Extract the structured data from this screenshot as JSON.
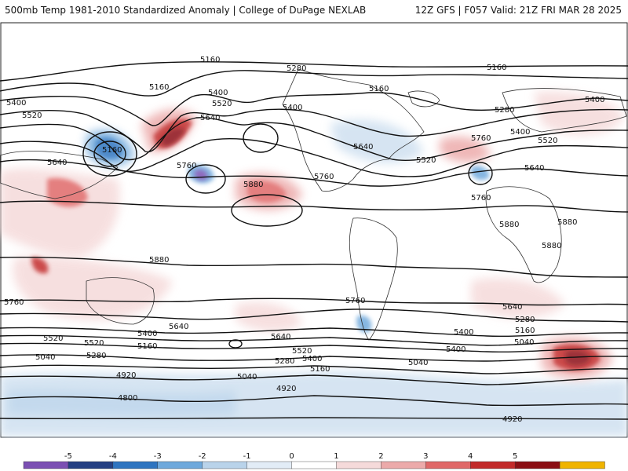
{
  "header": {
    "left": "500mb Temp 1981-2010 Standardized Anomaly | College of DuPage NEXLAB",
    "right": "12Z GFS | F057 Valid: 21Z FRI MAR 28 2025"
  },
  "colorbar": {
    "ticks": [
      "-5",
      "-4",
      "-3",
      "-2",
      "-1",
      "0",
      "1",
      "2",
      "3",
      "4",
      "5"
    ],
    "colors": [
      "#7b4fb3",
      "#243f82",
      "#2e74c0",
      "#6fa9dc",
      "#b9d3ea",
      "#e2ecf6",
      "#ffffff",
      "#f5dada",
      "#ecaaaa",
      "#e06868",
      "#c22a2a",
      "#8b0f14",
      "#f0b400"
    ]
  },
  "map": {
    "contour_labels": [
      "5160",
      "5280",
      "5160",
      "5160",
      "5400",
      "5520",
      "5400",
      "5640",
      "5160",
      "5280",
      "5400",
      "5160",
      "5520",
      "5640",
      "5760",
      "5880",
      "5400",
      "5640",
      "5520",
      "5760",
      "5400",
      "5520",
      "5760",
      "5640",
      "5880",
      "5880",
      "5880",
      "5880",
      "5760",
      "5760",
      "5760",
      "5640",
      "5640",
      "5400",
      "5520",
      "5400",
      "5640",
      "5520",
      "5520",
      "5400",
      "5280",
      "5160",
      "5040",
      "5400",
      "5160",
      "5280",
      "5280",
      "5160",
      "5040",
      "4920",
      "4800",
      "5040",
      "4920",
      "5040",
      "4920"
    ]
  }
}
